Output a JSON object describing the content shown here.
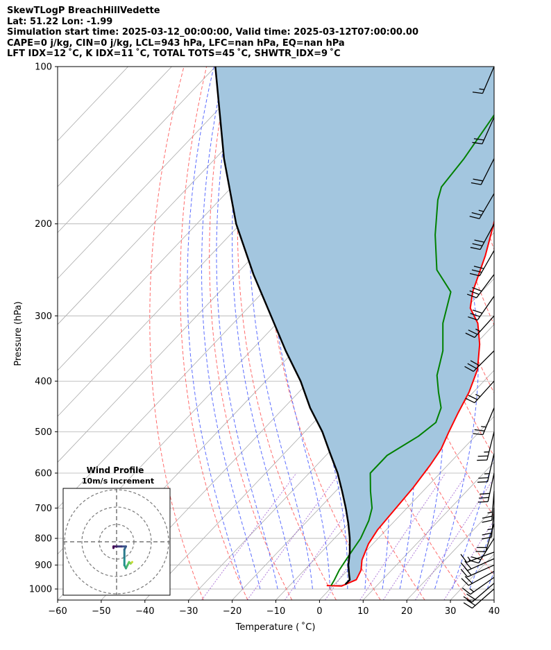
{
  "header": {
    "title": "SkewTLogP BreachHillVedette",
    "location": "Lat: 51.22   Lon: -1.99",
    "times": "Simulation start time: 2025-03-12_00:00:00, Valid time: 2025-03-12T07:00:00.00",
    "indices": "CAPE=0 j/kg, CIN=0 j/kg, LCL=943 hPa, LFC=nan hPa, EQ=nan hPa",
    "indices2": "LFT IDX=12 ˚C, K IDX=11 ˚C, TOTAL TOTS=45 ˚C, SHWTR_IDX=9 ˚C"
  },
  "chart_data": {
    "type": "line",
    "xlabel": "Temperature ( ˚C)",
    "ylabel": "Pressure (hPa)",
    "xlim": [
      -60,
      40
    ],
    "ylim": [
      1050,
      100
    ],
    "yscale": "log",
    "skew": true,
    "xticks": [
      -60,
      -50,
      -40,
      -30,
      -20,
      -10,
      0,
      10,
      20,
      30,
      40
    ],
    "xtick_labels": [
      "−60",
      "−50",
      "−40",
      "−30",
      "−20",
      "−10",
      "0",
      "10",
      "20",
      "30",
      "40"
    ],
    "yticks": [
      1000,
      900,
      800,
      700,
      600,
      500,
      400,
      300,
      200,
      100
    ],
    "ytick_labels": [
      "1000",
      "900",
      "800",
      "700",
      "600",
      "500",
      "400",
      "300",
      "200",
      "100"
    ],
    "grid": true,
    "colors": {
      "temperature": "#ff0000",
      "dewpoint": "#008000",
      "parcel": "#000000",
      "shade": "#a3c6df",
      "dry_adiabats": "#ff6b6b",
      "moist_adiabats": "#5a6cff",
      "mixing_ratio": "#9b59d0",
      "isotherms": "#aaaaaa"
    },
    "series": [
      {
        "name": "temperature",
        "points": [
          [
            -1.5,
            985
          ],
          [
            2,
            987
          ],
          [
            4,
            960
          ],
          [
            3,
            920
          ],
          [
            1,
            880
          ],
          [
            -1,
            820
          ],
          [
            -2,
            770
          ],
          [
            -2.5,
            700
          ],
          [
            -3,
            640
          ],
          [
            -4,
            580
          ],
          [
            -5,
            540
          ],
          [
            -7,
            500
          ],
          [
            -9,
            460
          ],
          [
            -11,
            420
          ],
          [
            -14,
            380
          ],
          [
            -19,
            340
          ],
          [
            -24,
            310
          ],
          [
            -29,
            290
          ],
          [
            -32,
            270
          ],
          [
            -37,
            230
          ],
          [
            -42,
            200
          ],
          [
            -48,
            170
          ],
          [
            -54,
            140
          ],
          [
            -60,
            115
          ],
          [
            -65,
            100
          ]
        ]
      },
      {
        "name": "dewpoint",
        "points": [
          [
            -0.5,
            985
          ],
          [
            -1,
            960
          ],
          [
            -2,
            920
          ],
          [
            -3,
            860
          ],
          [
            -4,
            800
          ],
          [
            -6,
            740
          ],
          [
            -8,
            700
          ],
          [
            -12,
            650
          ],
          [
            -16,
            600
          ],
          [
            -16,
            555
          ],
          [
            -13,
            510
          ],
          [
            -12,
            480
          ],
          [
            -14,
            450
          ],
          [
            -18,
            420
          ],
          [
            -22,
            390
          ],
          [
            -26,
            350
          ],
          [
            -32,
            310
          ],
          [
            -37,
            270
          ],
          [
            -45,
            245
          ],
          [
            -53,
            210
          ],
          [
            -60,
            180
          ],
          [
            -62,
            170
          ],
          [
            -63,
            150
          ],
          [
            -66,
            120
          ],
          [
            -68,
            100
          ]
        ]
      },
      {
        "name": "parcel",
        "points": [
          [
            2.5,
            980
          ],
          [
            2.5,
            960
          ],
          [
            1.5,
            943
          ],
          [
            -1,
            900
          ],
          [
            -3.5,
            850
          ],
          [
            -6.5,
            800
          ],
          [
            -10,
            750
          ],
          [
            -14,
            700
          ],
          [
            -18.5,
            650
          ],
          [
            -23.5,
            600
          ],
          [
            -29.5,
            550
          ],
          [
            -36,
            500
          ],
          [
            -44,
            450
          ],
          [
            -52,
            400
          ],
          [
            -62,
            350
          ],
          [
            -73,
            300
          ],
          [
            -86,
            250
          ],
          [
            -101,
            200
          ],
          [
            -118,
            150
          ],
          [
            -140,
            100
          ]
        ]
      }
    ],
    "wind_barbs": {
      "pressure": [
        1000,
        975,
        950,
        925,
        900,
        875,
        850,
        800,
        750,
        700,
        650,
        600,
        550,
        500,
        450,
        400,
        350,
        300,
        275,
        250,
        225,
        200,
        175,
        150,
        125,
        100
      ],
      "u": [
        8,
        7,
        7,
        9,
        9,
        9,
        8,
        5,
        3,
        1,
        1,
        3,
        3,
        3,
        5,
        9,
        11,
        9,
        9,
        9,
        8,
        7,
        7,
        5,
        4,
        3
      ],
      "v": [
        7,
        6,
        5,
        5,
        4,
        4,
        3,
        8,
        10,
        12,
        13,
        14,
        13,
        12,
        12,
        10,
        11,
        10,
        13,
        12,
        14,
        13,
        12,
        10,
        9,
        7
      ]
    },
    "hodograph": {
      "title": "Wind Profile",
      "subtitle": "10m/s increment",
      "rings_ms": [
        10,
        20,
        30
      ],
      "u": [
        10,
        10,
        9,
        8,
        7,
        6,
        5,
        5,
        5,
        6,
        3,
        0,
        -2,
        -2
      ],
      "v": [
        -13,
        -13,
        -14,
        -13,
        -15,
        -17,
        -15,
        -10,
        -5,
        -3,
        -3,
        -3,
        -3,
        -4
      ]
    }
  }
}
